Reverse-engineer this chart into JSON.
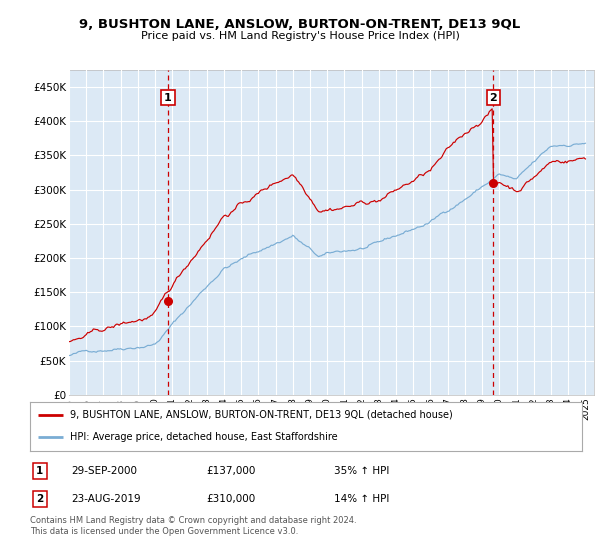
{
  "title": "9, BUSHTON LANE, ANSLOW, BURTON-ON-TRENT, DE13 9QL",
  "subtitle": "Price paid vs. HM Land Registry's House Price Index (HPI)",
  "background_color": "#dce9f5",
  "grid_color": "#ffffff",
  "red_color": "#cc0000",
  "blue_color": "#7aadd4",
  "xmin": 1995.0,
  "xmax": 2025.5,
  "ymin": 0,
  "ymax": 475000,
  "ytick_vals": [
    0,
    50000,
    100000,
    150000,
    200000,
    250000,
    300000,
    350000,
    400000,
    450000
  ],
  "ytick_labels": [
    "£0",
    "£50K",
    "£100K",
    "£150K",
    "£200K",
    "£250K",
    "£300K",
    "£350K",
    "£400K",
    "£450K"
  ],
  "xticks": [
    1995,
    1996,
    1997,
    1998,
    1999,
    2000,
    2001,
    2002,
    2003,
    2004,
    2005,
    2006,
    2007,
    2008,
    2009,
    2010,
    2011,
    2012,
    2013,
    2014,
    2015,
    2016,
    2017,
    2018,
    2019,
    2020,
    2021,
    2022,
    2023,
    2024,
    2025
  ],
  "sale1_x": 2000.75,
  "sale1_y": 137000,
  "sale2_x": 2019.65,
  "sale2_y": 310000,
  "legend_line1": "9, BUSHTON LANE, ANSLOW, BURTON-ON-TRENT, DE13 9QL (detached house)",
  "legend_line2": "HPI: Average price, detached house, East Staffordshire",
  "ann1_date": "29-SEP-2000",
  "ann1_price": "£137,000",
  "ann1_hpi": "35% ↑ HPI",
  "ann2_date": "23-AUG-2019",
  "ann2_price": "£310,000",
  "ann2_hpi": "14% ↑ HPI",
  "footer": "Contains HM Land Registry data © Crown copyright and database right 2024.\nThis data is licensed under the Open Government Licence v3.0."
}
